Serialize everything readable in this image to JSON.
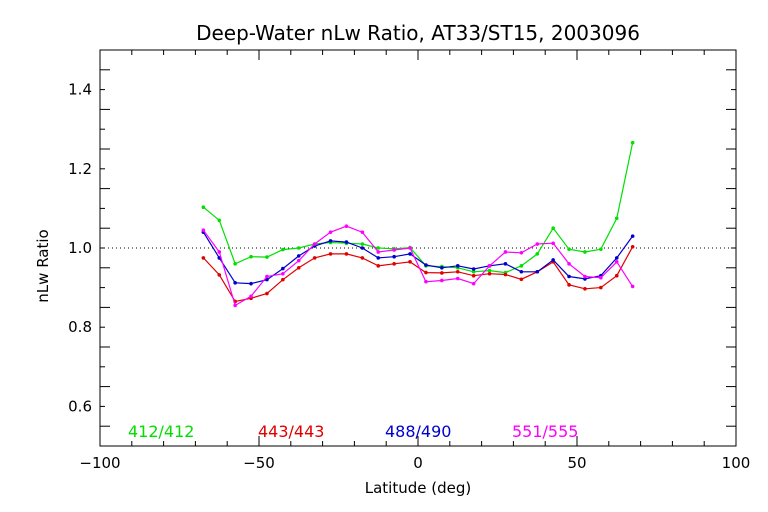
{
  "chart_data": {
    "type": "line",
    "title": "Deep-Water nLw Ratio, AT33/ST15, 2003096",
    "xlabel": "Latitude (deg)",
    "ylabel": "nLw Ratio",
    "xlim": [
      -100,
      100
    ],
    "ylim": [
      0.5,
      1.5
    ],
    "x_ticks": [
      -100,
      -50,
      0,
      50,
      100
    ],
    "x_tick_labels": [
      "−100",
      "−50",
      "0",
      "50",
      "100"
    ],
    "y_ticks": [
      0.6,
      0.8,
      1.0,
      1.2,
      1.4
    ],
    "y_tick_labels": [
      "0.6",
      "0.8",
      "1.0",
      "1.2",
      "1.4"
    ],
    "reference_line": 1.0,
    "x": [
      -67.5,
      -62.5,
      -57.5,
      -52.5,
      -47.5,
      -42.5,
      -37.5,
      -32.5,
      -27.5,
      -22.5,
      -17.5,
      -12.5,
      -7.5,
      -2.5,
      2.5,
      7.5,
      12.5,
      17.5,
      22.5,
      27.5,
      32.5,
      37.5,
      42.5,
      47.5,
      52.5,
      57.5,
      62.5,
      67.5
    ],
    "series": [
      {
        "name": "412/412",
        "color": "#00e000",
        "values": [
          1.103,
          1.07,
          0.96,
          0.978,
          0.977,
          0.996,
          1.0,
          1.01,
          1.014,
          1.012,
          1.01,
          1.0,
          0.998,
          1.001,
          0.955,
          0.953,
          0.95,
          0.94,
          0.943,
          0.938,
          0.955,
          0.985,
          1.05,
          0.997,
          0.99,
          0.997,
          1.075,
          1.266
        ]
      },
      {
        "name": "443/443",
        "color": "#e00000",
        "values": [
          0.975,
          0.932,
          0.865,
          0.873,
          0.885,
          0.92,
          0.95,
          0.975,
          0.985,
          0.985,
          0.975,
          0.955,
          0.96,
          0.965,
          0.938,
          0.937,
          0.94,
          0.93,
          0.935,
          0.933,
          0.921,
          0.94,
          0.965,
          0.907,
          0.897,
          0.9,
          0.93,
          1.003
        ]
      },
      {
        "name": "488/490",
        "color": "#0000cc",
        "values": [
          1.04,
          0.975,
          0.912,
          0.91,
          0.92,
          0.948,
          0.98,
          1.005,
          1.018,
          1.015,
          1.0,
          0.975,
          0.978,
          0.985,
          0.957,
          0.95,
          0.955,
          0.947,
          0.955,
          0.96,
          0.94,
          0.94,
          0.97,
          0.928,
          0.922,
          0.93,
          0.975,
          1.03
        ]
      },
      {
        "name": "551/555",
        "color": "#ff00ff",
        "values": [
          1.045,
          0.99,
          0.855,
          0.878,
          0.928,
          0.935,
          0.968,
          1.01,
          1.04,
          1.055,
          1.04,
          0.99,
          0.995,
          1.0,
          0.915,
          0.918,
          0.923,
          0.91,
          0.955,
          0.99,
          0.988,
          1.01,
          1.012,
          0.96,
          0.928,
          0.925,
          0.965,
          0.903
        ]
      }
    ]
  }
}
